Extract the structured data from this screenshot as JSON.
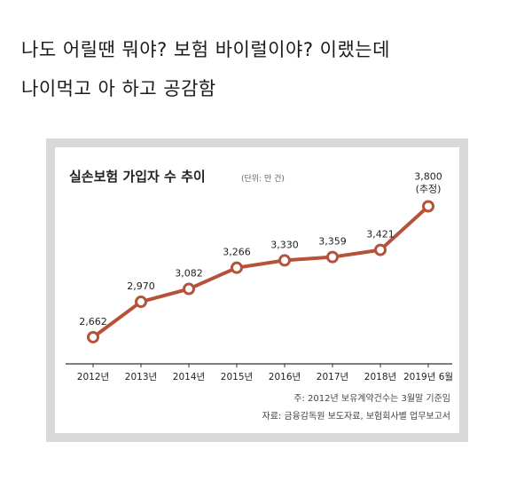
{
  "post": {
    "line1": "나도 어릴땐 뭐야? 보험 바이럴이야? 이랬는데",
    "line2": "나이먹고 아 하고 공감함"
  },
  "colors": {
    "line": "#b5533a",
    "point_fill": "#ffffff",
    "frame": "#d9d9d9",
    "axis": "#333333"
  },
  "chart_data": {
    "type": "line",
    "title": "실손보험 가입자 수 추이",
    "unit_note": "(단위: 만 건)",
    "categories": [
      "2012년",
      "2013년",
      "2014년",
      "2015년",
      "2016년",
      "2017년",
      "2018년",
      "2019년 6월"
    ],
    "values": [
      2662,
      2970,
      3082,
      3266,
      3330,
      3359,
      3421,
      3800
    ],
    "value_labels": [
      "2,662",
      "2,970",
      "3,082",
      "3,266",
      "3,330",
      "3,359",
      "3,421",
      "3,800"
    ],
    "last_label_note": "(추정)",
    "notes": [
      "주: 2012년 보유계약건수는 3월말 기준임",
      "자료: 금융감독원 보도자료, 보험회사별 업무보고서"
    ],
    "ylim": [
      2600,
      3850
    ],
    "grid": false,
    "legend": "none"
  }
}
